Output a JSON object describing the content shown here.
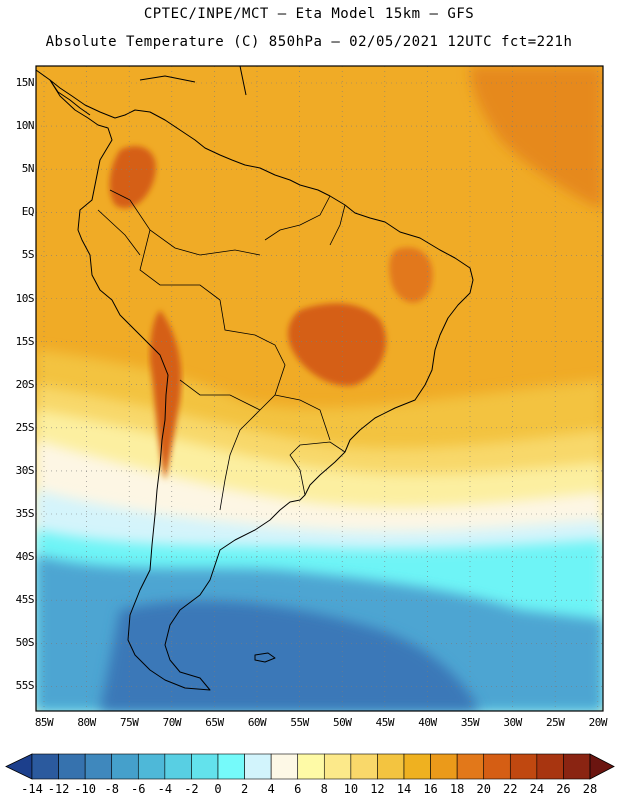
{
  "header": {
    "line1": "CPTEC/INPE/MCT –  Eta Model 15km – GFS",
    "line2": "Absolute Temperature (C) 850hPa – 02/05/2021 12UTC fct=221h"
  },
  "axes": {
    "lat_labels": [
      "15N",
      "10N",
      "5N",
      "EQ",
      "5S",
      "10S",
      "15S",
      "20S",
      "25S",
      "30S",
      "35S",
      "40S",
      "45S",
      "50S",
      "55S"
    ],
    "lon_labels": [
      "85W",
      "80W",
      "75W",
      "70W",
      "65W",
      "60W",
      "55W",
      "50W",
      "45W",
      "40W",
      "35W",
      "30W",
      "25W",
      "20W"
    ]
  },
  "colorbar": {
    "labels": [
      "-14",
      "-12",
      "-10",
      "-8",
      "-6",
      "-4",
      "-2",
      "0",
      "2",
      "4",
      "6",
      "8",
      "10",
      "12",
      "14",
      "16",
      "18",
      "20",
      "22",
      "24",
      "26",
      "28"
    ],
    "colors": [
      "#1c3f8c",
      "#2b5a9e",
      "#3672ae",
      "#3f88bd",
      "#45a0cb",
      "#4eb8d8",
      "#58cfe3",
      "#63e2ec",
      "#75fafa",
      "#d2f4fc",
      "#fdf8e6",
      "#fefaa6",
      "#fce98a",
      "#f9d86a",
      "#f3c440",
      "#efb120",
      "#eb9a1a",
      "#e2781a",
      "#d55e14",
      "#c04810",
      "#a83510",
      "#8a2412",
      "#6b1510"
    ]
  },
  "colors": {
    "ocean_warm": "#f0ab26",
    "ocean_hot": "#e6891e",
    "cold_deep": "#3a78b8",
    "cold_mid": "#4ea5d2",
    "cyan": "#6ef4f6",
    "pale_cyan": "#d4f4fb",
    "cream": "#fdf6e4",
    "pale_yellow": "#fcefa0",
    "yellow": "#f8d86a",
    "gold": "#f3c340"
  }
}
